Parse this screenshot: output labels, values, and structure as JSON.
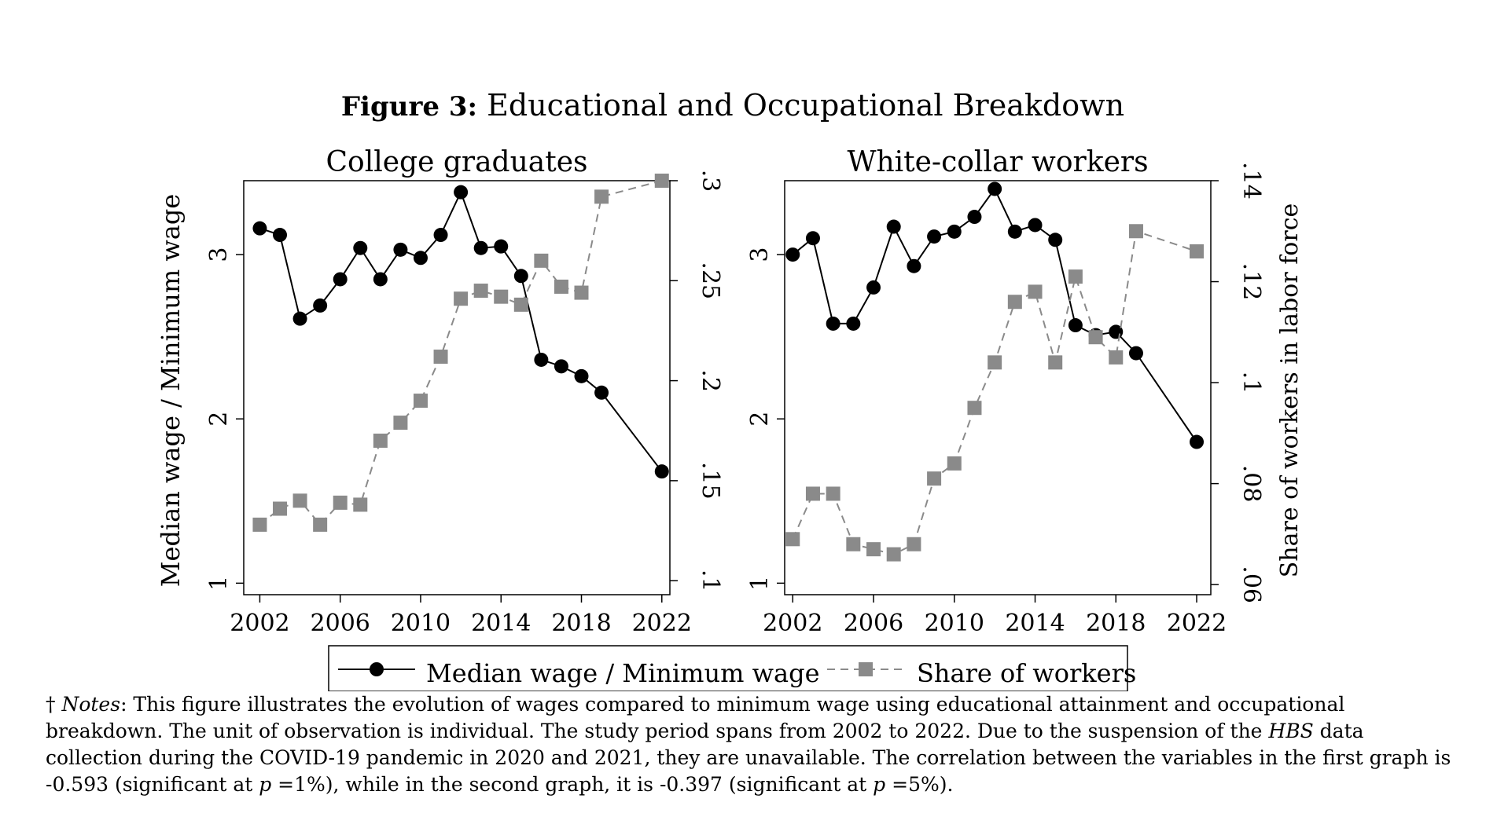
{
  "figure": {
    "label": "Figure 3:",
    "title": "Educational and Occupational Breakdown"
  },
  "legend": {
    "wage_label": "Median wage / Minimum wage",
    "share_label": "Share of workers"
  },
  "left_axis_label": "Median wage / Minimum wage",
  "right_axis_label": "Share of workers in labor force",
  "colors": {
    "wage": "#000000",
    "share": "#8a8a8a"
  },
  "chart_data": [
    {
      "type": "line",
      "title": "College graduates",
      "x_ticks": [
        2002,
        2006,
        2010,
        2014,
        2018,
        2022
      ],
      "xlim": [
        2001.2,
        2022.4
      ],
      "y_left": {
        "ticks": [
          "1",
          "2",
          "3"
        ],
        "tick_values": [
          1,
          2,
          3
        ],
        "lim": [
          0.93,
          3.45
        ]
      },
      "y_right": {
        "ticks": [
          ".1",
          ".15",
          ".2",
          ".25",
          ".3"
        ],
        "tick_values": [
          0.1,
          0.15,
          0.2,
          0.25,
          0.3
        ],
        "lim": [
          0.093,
          0.3
        ]
      },
      "series": [
        {
          "name": "Median wage / Minimum wage",
          "axis": "left",
          "marker": "circle",
          "x": [
            2002,
            2003,
            2004,
            2005,
            2006,
            2007,
            2008,
            2009,
            2010,
            2011,
            2012,
            2013,
            2014,
            2015,
            2016,
            2017,
            2018,
            2019,
            2022
          ],
          "values": [
            3.16,
            3.12,
            2.61,
            2.69,
            2.85,
            3.04,
            2.85,
            3.03,
            2.98,
            3.12,
            3.38,
            3.04,
            3.05,
            2.87,
            2.36,
            2.32,
            2.26,
            2.16,
            1.68
          ]
        },
        {
          "name": "Share of workers",
          "axis": "right",
          "marker": "square",
          "dashed": true,
          "x": [
            2002,
            2003,
            2004,
            2005,
            2006,
            2007,
            2008,
            2009,
            2010,
            2011,
            2012,
            2013,
            2014,
            2015,
            2016,
            2017,
            2018,
            2019,
            2022
          ],
          "values": [
            0.128,
            0.136,
            0.14,
            0.128,
            0.139,
            0.138,
            0.17,
            0.179,
            0.19,
            0.212,
            0.241,
            0.245,
            0.242,
            0.238,
            0.26,
            0.247,
            0.244,
            0.292,
            0.3
          ]
        }
      ]
    },
    {
      "type": "line",
      "title": "White-collar workers",
      "x_ticks": [
        2002,
        2006,
        2010,
        2014,
        2018,
        2022
      ],
      "xlim": [
        2001.6,
        2022.7
      ],
      "y_left": {
        "ticks": [
          "1",
          "2",
          "3"
        ],
        "tick_values": [
          1,
          2,
          3
        ],
        "lim": [
          0.93,
          3.45
        ]
      },
      "y_right": {
        "ticks": [
          ".06",
          ".08",
          ".1",
          ".12",
          ".14"
        ],
        "tick_values": [
          0.06,
          0.08,
          0.1,
          0.12,
          0.14
        ],
        "lim": [
          0.058,
          0.14
        ]
      },
      "series": [
        {
          "name": "Median wage / Minimum wage",
          "axis": "left",
          "marker": "circle",
          "x": [
            2002,
            2003,
            2004,
            2005,
            2006,
            2007,
            2008,
            2009,
            2010,
            2011,
            2012,
            2013,
            2014,
            2015,
            2016,
            2017,
            2018,
            2019,
            2022
          ],
          "values": [
            3.0,
            3.1,
            2.58,
            2.58,
            2.8,
            3.17,
            2.93,
            3.11,
            3.14,
            3.23,
            3.4,
            3.14,
            3.18,
            3.09,
            2.57,
            2.51,
            2.53,
            2.4,
            1.86
          ]
        },
        {
          "name": "Share of workers",
          "axis": "right",
          "marker": "square",
          "dashed": true,
          "x": [
            2002,
            2003,
            2004,
            2005,
            2006,
            2007,
            2008,
            2009,
            2010,
            2011,
            2012,
            2013,
            2014,
            2015,
            2016,
            2017,
            2018,
            2019,
            2022
          ],
          "values": [
            0.069,
            0.078,
            0.078,
            0.068,
            0.067,
            0.066,
            0.068,
            0.081,
            0.084,
            0.095,
            0.104,
            0.116,
            0.118,
            0.104,
            0.121,
            0.109,
            0.105,
            0.13,
            0.126
          ]
        }
      ]
    }
  ],
  "notes": {
    "dagger": "†",
    "label": "Notes",
    "text_1": ": This figure illustrates the evolution of wages compared to minimum wage using educational attainment and occupational breakdown. The unit of observation is individual. The study period spans from 2002 to 2022. Due to the suspension of the ",
    "hbs": "HBS",
    "text_2": " data collection during the COVID-19 pandemic in 2020 and 2021, they are unavailable. The correlation between the variables in the first graph is -0.593 (significant at ",
    "p1": "p",
    "text_3": " =1%), while in the second graph, it is -0.397 (significant at ",
    "p2": "p",
    "text_4": " =5%)."
  }
}
